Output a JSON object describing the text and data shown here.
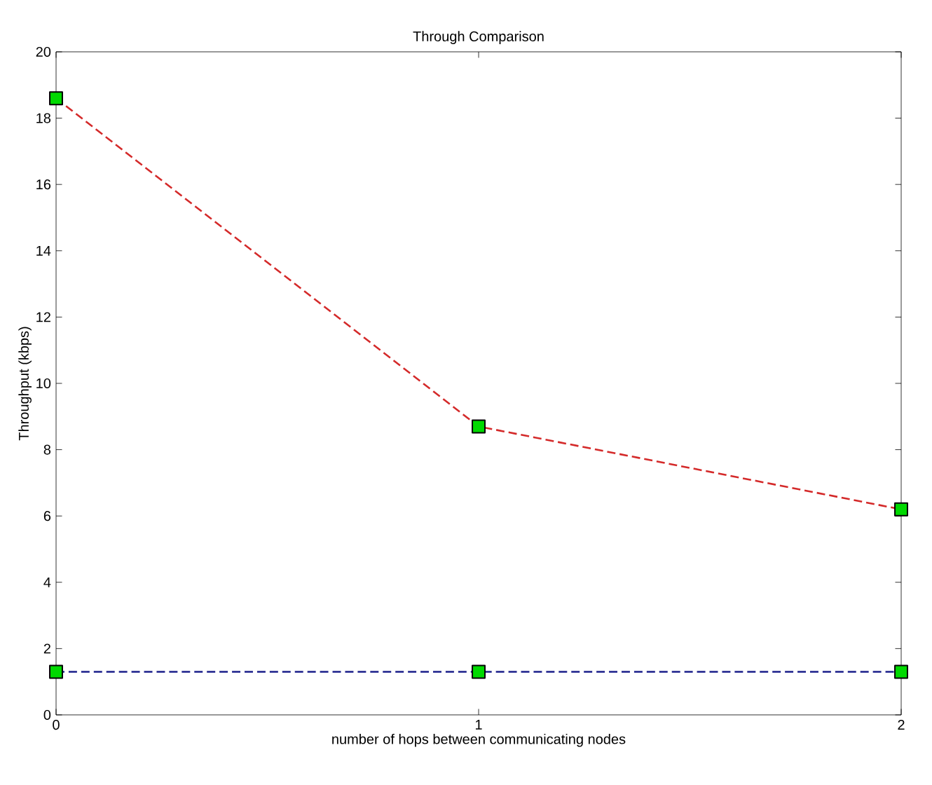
{
  "chart_data": {
    "type": "line",
    "title": "Through Comparison",
    "xlabel": "number of hops between communicating nodes",
    "ylabel": "Throughput (kbps)",
    "x": [
      0,
      1,
      2
    ],
    "series": [
      {
        "color": "#d42a2a",
        "values": [
          18.6,
          8.7,
          6.2
        ]
      },
      {
        "color": "#1a1f8a",
        "values": [
          1.3,
          1.3,
          1.3
        ]
      }
    ],
    "xlim": [
      0,
      2
    ],
    "ylim": [
      0,
      20
    ],
    "xticks": [
      0,
      1,
      2
    ],
    "yticks": [
      0,
      2,
      4,
      6,
      8,
      10,
      12,
      14,
      16,
      18,
      20
    ],
    "marker": "square",
    "line_style": "dashed"
  }
}
